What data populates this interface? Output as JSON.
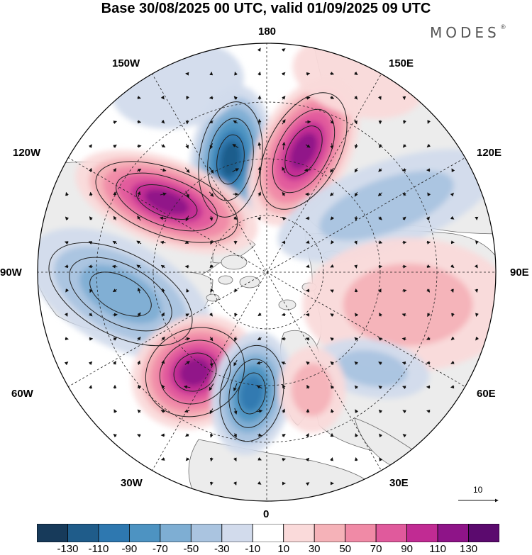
{
  "title": "Base 30/08/2025 00 UTC, valid 01/09/2025 09 UTC",
  "brand": "MODES",
  "brand_mark": "®",
  "longitude_labels": {
    "top": "180",
    "top_left": "150W",
    "top_right": "150E",
    "upper_left": "120W",
    "upper_right": "120E",
    "left": "90W",
    "right": "90E",
    "lower_left": "60W",
    "lower_right": "60E",
    "bottom_left": "30W",
    "bottom_right": "30E",
    "bottom": "0"
  },
  "vector_reference": "10",
  "colorbar": {
    "ticks": [
      "-130",
      "-110",
      "-90",
      "-70",
      "-50",
      "-30",
      "-10",
      "10",
      "30",
      "50",
      "70",
      "90",
      "110",
      "130"
    ],
    "colors": [
      "#173a5a",
      "#1f5c8a",
      "#2e78b0",
      "#4d93c2",
      "#7eaed3",
      "#aac4e0",
      "#d2dbec",
      "#ffffff",
      "#fadada",
      "#f5b2b8",
      "#f08aa6",
      "#e05a9c",
      "#c12b93",
      "#8e1488",
      "#5b0a6e"
    ]
  },
  "colors": {
    "land": "#ececec",
    "ocean": "#ffffff",
    "coast": "#6a6a6a",
    "grid": "#222222",
    "arrow": "#111111",
    "contour": "#222222"
  },
  "anomaly_centers": [
    {
      "region": "north-pacific-west",
      "value": -120
    },
    {
      "region": "north-pacific-east",
      "value": 110
    },
    {
      "region": "alaska-beaufort",
      "value": 110
    },
    {
      "region": "canada",
      "value": -60
    },
    {
      "region": "north-atlantic-west",
      "value": 110
    },
    {
      "region": "north-atlantic-east",
      "value": -100
    },
    {
      "region": "eastern-siberia",
      "value": -40
    },
    {
      "region": "central-siberia",
      "value": 30
    },
    {
      "region": "western-russia",
      "value": -30
    },
    {
      "region": "scandinavia",
      "value": 30
    }
  ]
}
